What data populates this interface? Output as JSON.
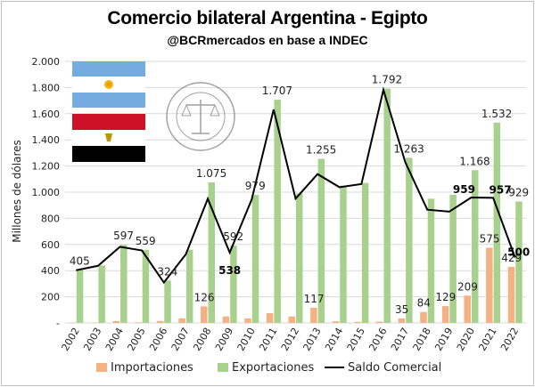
{
  "header": {
    "title": "Comercio bilateral Argentina - Egipto",
    "subtitle": "@BCRmercados en base a INDEC"
  },
  "logo": {
    "seal_text": "BOLSA DE COMERCIO DE ROSARIO"
  },
  "colors": {
    "importaciones": "#F4B183",
    "exportaciones": "#A9D18E",
    "saldo": "#000000",
    "grid": "#D9D9D9"
  },
  "chart_data": {
    "type": "bar",
    "title": "Comercio bilateral Argentina - Egipto",
    "subtitle": "@BCRmercados en base a INDEC",
    "xlabel": "",
    "ylabel": "Millones de dólares",
    "ylim": [
      0,
      2000
    ],
    "yticks": [
      "-",
      "200",
      "400",
      "600",
      "800",
      "1.000",
      "1.200",
      "1.400",
      "1.600",
      "1.800",
      "2.000"
    ],
    "grid": true,
    "legend_position": "bottom",
    "categories": [
      "2002",
      "2003",
      "2004",
      "2005",
      "2006",
      "2007",
      "2008",
      "2009",
      "2010",
      "2011",
      "2012",
      "2013",
      "2014",
      "2015",
      "2016",
      "2017",
      "2018",
      "2019",
      "2020",
      "2021",
      "2022"
    ],
    "series": [
      {
        "name": "Importaciones",
        "type": "bar",
        "values": [
          2,
          3,
          15,
          5,
          15,
          35,
          126,
          50,
          35,
          75,
          50,
          117,
          12,
          8,
          10,
          35,
          84,
          129,
          209,
          575,
          429
        ]
      },
      {
        "name": "Exportaciones",
        "type": "bar",
        "values": [
          405,
          440,
          597,
          559,
          324,
          560,
          1075,
          592,
          979,
          1707,
          990,
          1255,
          1050,
          1070,
          1792,
          1263,
          950,
          980,
          1168,
          1532,
          929
        ]
      },
      {
        "name": "Saldo Comercial",
        "type": "line",
        "values": [
          403,
          437,
          582,
          554,
          309,
          525,
          949,
          538,
          944,
          1632,
          950,
          1138,
          1038,
          1062,
          1782,
          1228,
          866,
          851,
          959,
          957,
          500
        ]
      }
    ],
    "data_labels": [
      {
        "series": "Exportaciones",
        "index": 0,
        "text": "405"
      },
      {
        "series": "Exportaciones",
        "index": 2,
        "text": "597"
      },
      {
        "series": "Exportaciones",
        "index": 3,
        "text": "559"
      },
      {
        "series": "Exportaciones",
        "index": 4,
        "text": "324"
      },
      {
        "series": "Exportaciones",
        "index": 6,
        "text": "1.075"
      },
      {
        "series": "Exportaciones",
        "index": 7,
        "text": "592"
      },
      {
        "series": "Exportaciones",
        "index": 8,
        "text": "979"
      },
      {
        "series": "Exportaciones",
        "index": 9,
        "text": "1.707"
      },
      {
        "series": "Exportaciones",
        "index": 11,
        "text": "1.255"
      },
      {
        "series": "Exportaciones",
        "index": 14,
        "text": "1.792"
      },
      {
        "series": "Exportaciones",
        "index": 15,
        "text": "1.263"
      },
      {
        "series": "Exportaciones",
        "index": 18,
        "text": "1.168"
      },
      {
        "series": "Exportaciones",
        "index": 19,
        "text": "1.532"
      },
      {
        "series": "Exportaciones",
        "index": 20,
        "text": "929"
      },
      {
        "series": "Importaciones",
        "index": 6,
        "text": "126"
      },
      {
        "series": "Importaciones",
        "index": 11,
        "text": "117"
      },
      {
        "series": "Importaciones",
        "index": 15,
        "text": "35"
      },
      {
        "series": "Importaciones",
        "index": 16,
        "text": "84"
      },
      {
        "series": "Importaciones",
        "index": 17,
        "text": "129"
      },
      {
        "series": "Importaciones",
        "index": 18,
        "text": "209"
      },
      {
        "series": "Importaciones",
        "index": 19,
        "text": "575"
      },
      {
        "series": "Importaciones",
        "index": 20,
        "text": "429"
      },
      {
        "series": "Saldo Comercial",
        "index": 7,
        "text": "538",
        "bold": true
      },
      {
        "series": "Saldo Comercial",
        "index": 18,
        "text": "959",
        "bold": true
      },
      {
        "series": "Saldo Comercial",
        "index": 19,
        "text": "957",
        "bold": true
      },
      {
        "series": "Saldo Comercial",
        "index": 20,
        "text": "500",
        "bold": true
      }
    ]
  }
}
